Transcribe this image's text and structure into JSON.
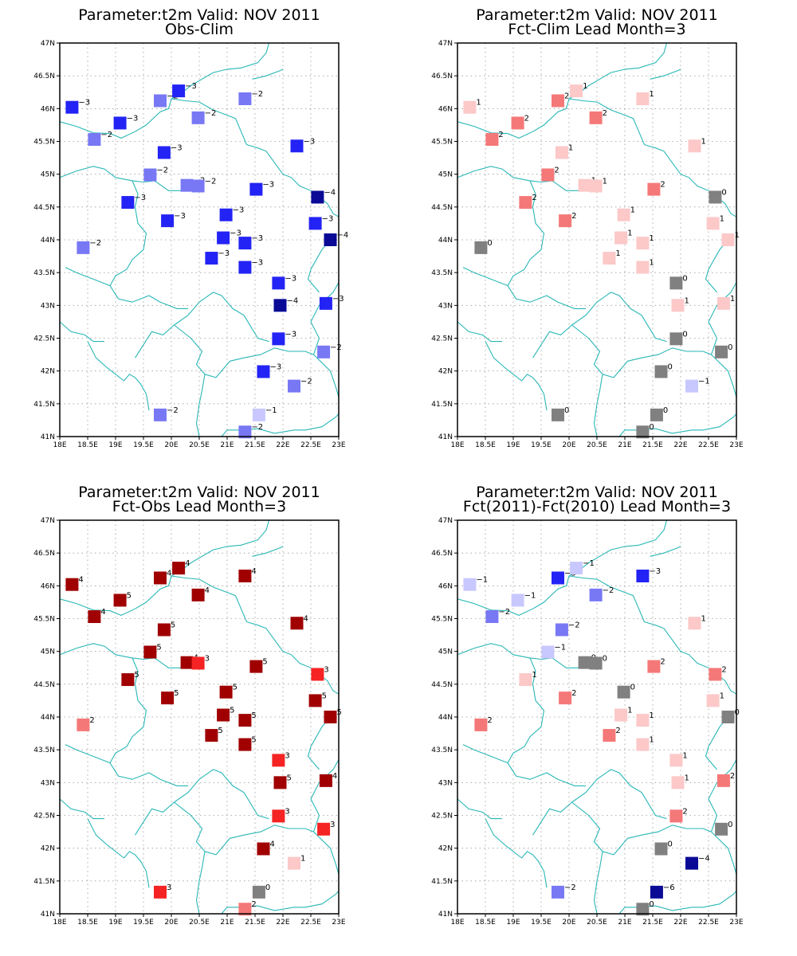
{
  "axes": {
    "lon_ticks": [
      "18E",
      "18.5E",
      "19E",
      "19.5E",
      "20E",
      "20.5E",
      "21E",
      "21.5E",
      "22E",
      "22.5E",
      "23E"
    ],
    "lat_ticks": [
      "41N",
      "41.5N",
      "42N",
      "42.5N",
      "43N",
      "43.5N",
      "44N",
      "44.5N",
      "45N",
      "45.5N",
      "46N",
      "46.5N",
      "47N"
    ],
    "lon_range": [
      18,
      23
    ],
    "lat_range": [
      41,
      47
    ],
    "grid": "dotted"
  },
  "colors": {
    "frame": "#000000",
    "coastline": "#2ab7b7",
    "grid": "#9a9a9a",
    "zero": "#808080",
    "neg": {
      "1": "#c8c8ff",
      "2": "#7878f5",
      "3": "#2323f5",
      "4": "#0a0a96",
      "6": "#0a0a96"
    },
    "pos": {
      "1": "#fcc8c8",
      "2": "#f57878",
      "3": "#f52323",
      "4": "#a00000",
      "5": "#a00000"
    }
  },
  "panels": [
    {
      "title_line1": "Parameter:t2m Valid: NOV 2011",
      "title_line2": "Obs-Clim"
    },
    {
      "title_line1": "Parameter:t2m Valid: NOV 2011",
      "title_line2": "Fct-Clim Lead Month=3"
    },
    {
      "title_line1": "Parameter:t2m Valid: NOV 2011",
      "title_line2": "Fct-Obs Lead Month=3"
    },
    {
      "title_line1": "Parameter:t2m Valid: NOV 2011",
      "title_line2": "Fct(2011)-Fct(2010) Lead Month=3"
    }
  ],
  "chart_data": {
    "type": "station-map",
    "variable": "t2m",
    "stations": [
      {
        "lon": 18.22,
        "lat": 46.02
      },
      {
        "lon": 18.62,
        "lat": 45.53
      },
      {
        "lon": 19.08,
        "lat": 45.78
      },
      {
        "lon": 19.8,
        "lat": 46.12
      },
      {
        "lon": 20.13,
        "lat": 46.27
      },
      {
        "lon": 20.48,
        "lat": 45.86
      },
      {
        "lon": 21.32,
        "lat": 46.15
      },
      {
        "lon": 22.25,
        "lat": 45.43
      },
      {
        "lon": 19.87,
        "lat": 45.33
      },
      {
        "lon": 19.62,
        "lat": 44.99
      },
      {
        "lon": 20.28,
        "lat": 44.83
      },
      {
        "lon": 20.48,
        "lat": 44.82
      },
      {
        "lon": 21.52,
        "lat": 44.77
      },
      {
        "lon": 22.62,
        "lat": 44.65
      },
      {
        "lon": 19.22,
        "lat": 44.57
      },
      {
        "lon": 19.93,
        "lat": 44.29
      },
      {
        "lon": 20.98,
        "lat": 44.38
      },
      {
        "lon": 22.58,
        "lat": 44.25
      },
      {
        "lon": 20.93,
        "lat": 44.03
      },
      {
        "lon": 22.85,
        "lat": 44.0
      },
      {
        "lon": 18.42,
        "lat": 43.88
      },
      {
        "lon": 21.32,
        "lat": 43.95
      },
      {
        "lon": 20.72,
        "lat": 43.72
      },
      {
        "lon": 21.32,
        "lat": 43.58
      },
      {
        "lon": 21.92,
        "lat": 43.34
      },
      {
        "lon": 21.95,
        "lat": 43.0
      },
      {
        "lon": 22.77,
        "lat": 43.03
      },
      {
        "lon": 21.92,
        "lat": 42.49
      },
      {
        "lon": 22.73,
        "lat": 42.29
      },
      {
        "lon": 21.65,
        "lat": 41.99
      },
      {
        "lon": 22.2,
        "lat": 41.77
      },
      {
        "lon": 19.8,
        "lat": 41.33
      },
      {
        "lon": 21.57,
        "lat": 41.33
      },
      {
        "lon": 21.32,
        "lat": 41.07
      }
    ],
    "series": [
      {
        "name": "Obs-Clim",
        "values": [
          -3,
          -2,
          -3,
          -2,
          -3,
          -2,
          -2,
          -3,
          -3,
          -2,
          -2,
          -2,
          -3,
          -4,
          -3,
          -3,
          -3,
          -3,
          -3,
          -4,
          -2,
          -3,
          -3,
          -3,
          -3,
          -4,
          -3,
          -3,
          -2,
          -3,
          -2,
          -2,
          -1,
          -2
        ]
      },
      {
        "name": "Fct-Clim Lead Month=3",
        "values": [
          1,
          2,
          2,
          2,
          1,
          2,
          1,
          1,
          1,
          2,
          1,
          1,
          2,
          0,
          2,
          2,
          1,
          1,
          1,
          1,
          0,
          1,
          1,
          1,
          0,
          1,
          1,
          0,
          0,
          0,
          -1,
          0,
          0,
          0
        ]
      },
      {
        "name": "Fct-Obs Lead Month=3",
        "values": [
          4,
          4,
          5,
          4,
          4,
          4,
          4,
          4,
          5,
          5,
          4,
          3,
          5,
          3,
          5,
          5,
          5,
          5,
          5,
          5,
          2,
          5,
          5,
          5,
          3,
          5,
          4,
          3,
          3,
          4,
          1,
          3,
          0,
          2
        ]
      },
      {
        "name": "Fct(2011)-Fct(2010) Lead Month=3",
        "values": [
          -1,
          -2,
          -1,
          -3,
          -1,
          -2,
          -3,
          1,
          -2,
          -1,
          0,
          0,
          2,
          2,
          1,
          2,
          0,
          1,
          1,
          0,
          2,
          1,
          2,
          1,
          1,
          1,
          2,
          2,
          0,
          0,
          -4,
          -2,
          -6,
          0
        ]
      }
    ]
  },
  "coast_paths": [
    "M18.0,45.8 L18.3,45.73 L18.6,45.63 L18.9,45.62 L19.1,45.55 L19.35,45.65 L19.55,45.75 L19.8,45.95 L19.95,46.0 L20.0,46.15 L20.25,46.12 L20.5,46.1 L20.75,45.98 L21.0,45.9 L21.15,45.85 L21.35,45.45 L21.55,45.4 L21.7,45.35 L22.0,45.0 L22.15,44.95 L22.3,44.82 L22.5,44.75 L22.65,44.65 L22.8,44.55 L22.9,44.4 L23.0,44.35",
    "M20.0,46.15 L20.2,46.25 L20.35,46.35 L20.55,46.45 L20.75,46.55 L21.0,46.6 L21.25,46.62 L21.55,46.7 L21.7,46.85 L21.75,47.0",
    "M21.45,46.45 L21.7,46.5 L21.95,46.58 L22.0,46.6",
    "M18.0,44.95 L18.3,45.05 L18.6,45.12 L18.8,45.08 L19.0,44.95 L19.3,44.9 L19.5,44.88 L19.7,44.9 L19.95,44.75 L20.1,44.75 L20.25,44.75",
    "M19.3,44.9 L19.4,44.7 L19.35,44.5 L19.4,44.25 L19.55,44.1 L19.5,43.85 L19.3,43.7 L19.2,43.55 L19.0,43.45 L18.9,43.3",
    "M18.1,43.58 L18.3,43.5 L18.6,43.4 L18.9,43.3 L19.05,43.1 L19.3,43.05 L19.6,43.15 L19.8,43.05 L20.1,42.95 L20.3,42.95",
    "M18.0,42.75 L18.2,42.6 L18.45,42.55 L18.6,42.45 L18.8,42.45",
    "M18.5,42.45 L18.65,42.2 L18.85,42.05 L19.0,41.95 L19.15,41.85",
    "M19.15,41.85 L19.25,41.95 L19.35,41.9 L19.45,41.8 L19.55,41.65 L19.6,41.4",
    "M19.35,42.2 L19.5,42.4 L19.65,42.6 L19.85,42.55 L20.05,42.7",
    "M20.05,42.7 L20.3,42.85 L20.5,43.05 L20.75,43.2 L20.9,43.15 L21.1,42.95 L21.3,42.85 L21.55,42.5 L21.75,42.45",
    "M20.05,42.7 L20.35,42.5 L20.55,42.3 L20.45,42.1 L20.6,41.95 L20.55,41.7 L20.5,41.5 L20.45,41.2 L20.5,41.0",
    "M20.6,41.95 L20.8,41.9 L21.05,42.15 L21.3,42.2 L21.6,42.25 L21.85,42.35 L22.1,42.3 L22.4,42.3 L22.55,42.25",
    "M22.55,42.25 L22.85,42.0 L22.95,41.75 L23.0,41.6",
    "M22.55,42.25 L22.65,42.5 L22.5,42.75 L22.65,43.0 L22.9,43.2 L23.0,43.35",
    "M22.4,41.1 L22.7,41.15 L22.95,41.3 L23.0,41.35",
    "M20.9,41.0 L21.0,41.1 L21.25,41.1 L21.55,41.12 L21.85,41.05 L22.2,41.1 L22.4,41.1",
    "M22.85,44.0 L22.7,43.85 L22.6,43.7 L22.5,43.55 L22.45,43.4 L22.65,43.2"
  ]
}
